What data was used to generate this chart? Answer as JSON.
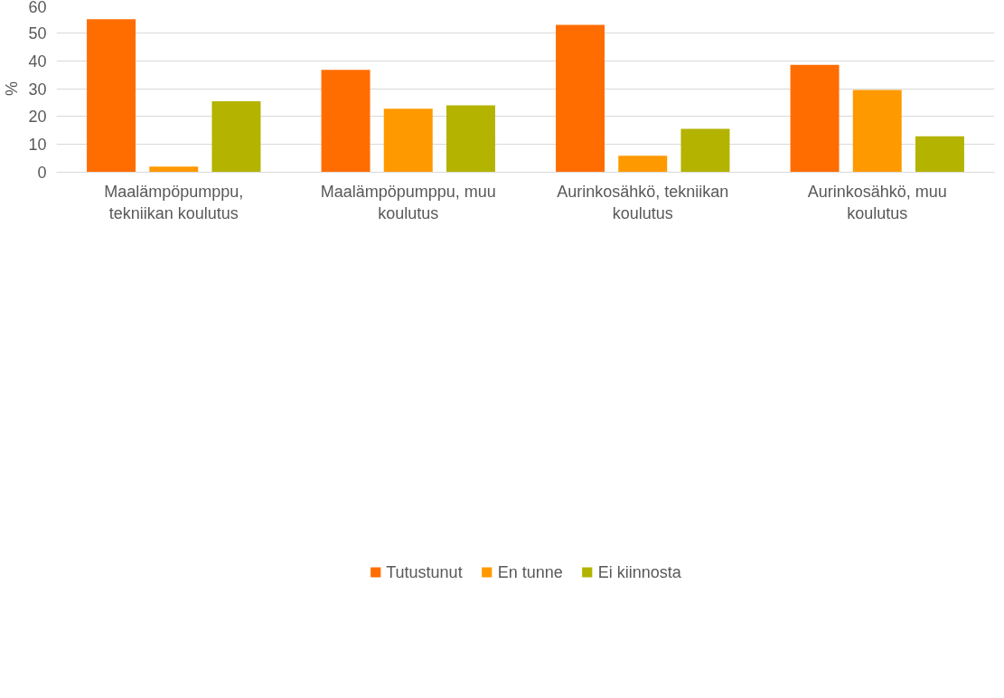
{
  "chart_data": {
    "type": "bar",
    "ylabel": "%",
    "categories": [
      "Maalämpöpumppu, tekniikan koulutus",
      "Maalämpöpumppu, muu koulutus",
      "Aurinkosähkö, tekniikan koulutus",
      "Aurinkosähkö, muu koulutus"
    ],
    "series": [
      {
        "name": "Tutustunut",
        "color": "#ff6d00",
        "values": [
          54.9,
          36.7,
          52.9,
          38.5
        ]
      },
      {
        "name": "En tunne",
        "color": "#ff9900",
        "values": [
          2.0,
          22.8,
          5.9,
          29.5
        ]
      },
      {
        "name": "Ei kiinnosta",
        "color": "#b3b300",
        "values": [
          25.5,
          24.0,
          15.6,
          12.9
        ]
      }
    ],
    "ylim": [
      0,
      60
    ],
    "yticks": [
      0,
      10,
      20,
      30,
      40,
      50,
      60
    ],
    "grid": "y",
    "legend": "bottom"
  }
}
